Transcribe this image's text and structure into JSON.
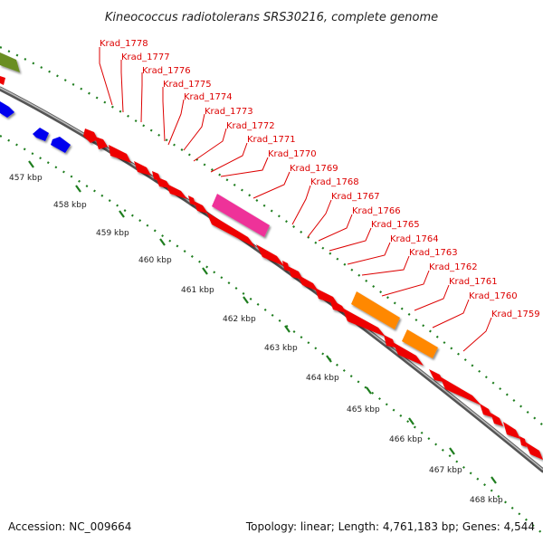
{
  "title": "Kineococcus radiotolerans SRS30216, complete genome",
  "accession_label": "Accession: NC_009664",
  "summary_label": "Topology: linear; Length: 4,761,183 bp; Genes: 4,544",
  "colors": {
    "backbone": "#888888",
    "tick": "#1e7d1e",
    "label": "#dd0000",
    "forward_gene": "#ee0000",
    "reverse_gene": "#0000ee",
    "pink_feature": "#ee3399",
    "orange_feature": "#ff8800",
    "olive_feature": "#6b8e23"
  },
  "kbp_ticks": [
    "457 kbp",
    "458 kbp",
    "459 kbp",
    "460 kbp",
    "461 kbp",
    "462 kbp",
    "463 kbp",
    "464 kbp",
    "465 kbp",
    "466 kbp",
    "467 kbp",
    "468 kbp"
  ],
  "gene_labels": [
    "Krad_1778",
    "Krad_1777",
    "Krad_1776",
    "Krad_1775",
    "Krad_1774",
    "Krad_1773",
    "Krad_1772",
    "Krad_1771",
    "Krad_1770",
    "Krad_1769",
    "Krad_1768",
    "Krad_1767",
    "Krad_1766",
    "Krad_1765",
    "Krad_1764",
    "Krad_1763",
    "Krad_1762",
    "Krad_1761",
    "Krad_1760",
    "Krad_1759"
  ]
}
